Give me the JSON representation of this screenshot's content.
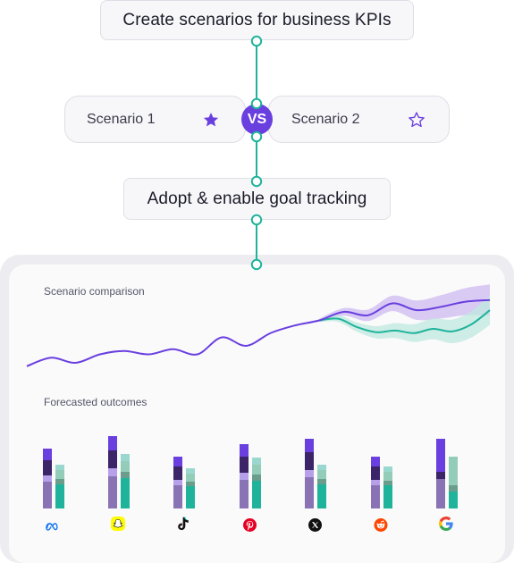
{
  "header": {
    "title": "Create scenarios for business KPIs"
  },
  "scenarios": {
    "left_label": "Scenario 1",
    "right_label": "Scenario 2",
    "vs_label": "VS"
  },
  "step2": {
    "title": "Adopt & enable goal tracking"
  },
  "panel": {
    "comparison_title": "Scenario comparison",
    "outcomes_title": "Forecasted outcomes"
  },
  "icons": {
    "star_filled": "star-filled-icon",
    "star_outline": "star-outline-icon",
    "platforms": [
      "meta-icon",
      "snapchat-icon",
      "tiktok-icon",
      "pinterest-icon",
      "x-icon",
      "reddit-icon",
      "google-icon"
    ]
  },
  "colors": {
    "accent_purple": "#6a3fe0",
    "connector_teal": "#1fb39b",
    "scenario1_line": "#6a3fe0",
    "scenario2_line": "#1fb39b",
    "band_purple": "#cdbaf2",
    "band_teal": "#bfe8df"
  },
  "chart_data": [
    {
      "type": "line",
      "title": "Scenario comparison",
      "series": [
        {
          "values": [
            0.16,
            0.26,
            0.2,
            0.3,
            0.34,
            0.3,
            0.36,
            0.3,
            0.5,
            0.4,
            0.55,
            0.64,
            0.7,
            0.8,
            0.76,
            0.9,
            0.82,
            0.86,
            0.92,
            0.94
          ]
        },
        {
          "values": [
            0.76,
            0.72,
            0.62,
            0.56,
            0.58,
            0.55,
            0.6,
            0.57,
            0.65,
            0.82
          ]
        }
      ]
    },
    {
      "type": "bar",
      "title": "Forecasted outcomes",
      "categories": [
        "meta-icon",
        "snapchat-icon",
        "tiktok-icon",
        "pinterest-icon",
        "x-icon",
        "reddit-icon",
        "google-icon"
      ],
      "series": [
        {
          "values": [
            75,
            90,
            65,
            80,
            87,
            65,
            87
          ]
        },
        {
          "values": [
            55,
            68,
            50,
            63,
            55,
            52,
            65
          ]
        }
      ]
    }
  ]
}
